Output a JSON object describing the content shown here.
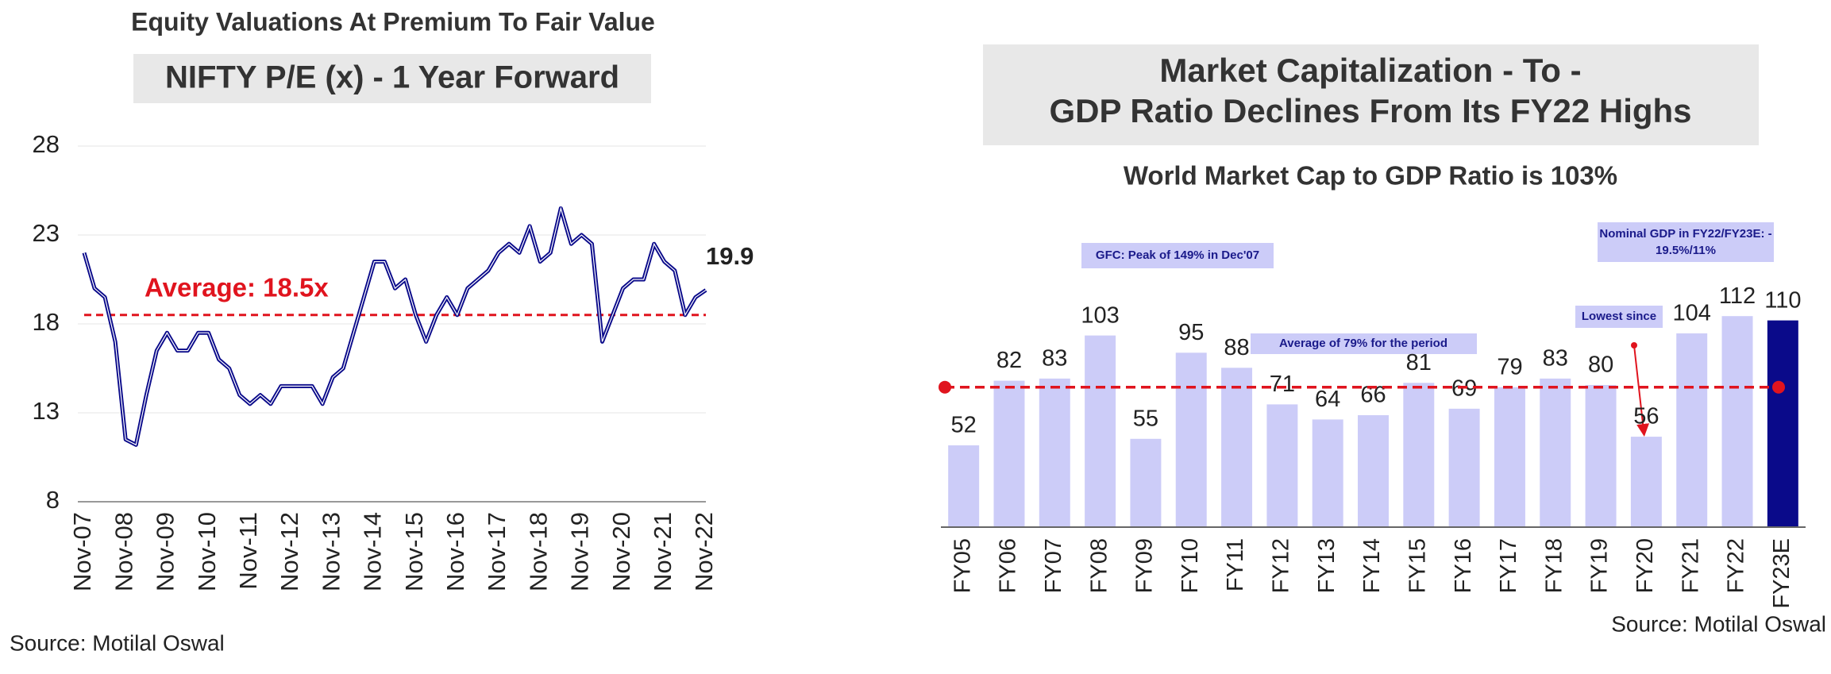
{
  "chart_data": [
    {
      "type": "line",
      "title": "Equity Valuations At Premium To Fair Value",
      "subtitle": "NIFTY P/E (x) - 1 Year Forward",
      "x": [
        "Nov-07",
        "Feb-08",
        "May-08",
        "Aug-08",
        "Nov-08",
        "Feb-09",
        "May-09",
        "Aug-09",
        "Nov-09",
        "Feb-10",
        "May-10",
        "Aug-10",
        "Nov-10",
        "Feb-11",
        "May-11",
        "Aug-11",
        "Nov-11",
        "Feb-12",
        "May-12",
        "Aug-12",
        "Nov-12",
        "Feb-13",
        "May-13",
        "Aug-13",
        "Nov-13",
        "Feb-14",
        "May-14",
        "Aug-14",
        "Nov-14",
        "Feb-15",
        "May-15",
        "Aug-15",
        "Nov-15",
        "Feb-16",
        "May-16",
        "Aug-16",
        "Nov-16",
        "Feb-17",
        "May-17",
        "Aug-17",
        "Nov-17",
        "Feb-18",
        "May-18",
        "Aug-18",
        "Nov-18",
        "Feb-19",
        "May-19",
        "Aug-19",
        "Nov-19",
        "Feb-20",
        "May-20",
        "Aug-20",
        "Nov-20",
        "Feb-21",
        "May-21",
        "Aug-21",
        "Nov-21",
        "Feb-22",
        "May-22",
        "Aug-22",
        "Nov-22"
      ],
      "values": [
        22,
        20,
        19.5,
        17,
        11.5,
        11.2,
        14,
        16.5,
        17.5,
        16.5,
        16.5,
        17.5,
        17.5,
        16,
        15.5,
        14,
        13.5,
        14,
        13.5,
        14.5,
        14.5,
        14.5,
        14.5,
        13.5,
        15,
        15.5,
        17.5,
        19.5,
        21.5,
        21.5,
        20,
        20.5,
        18.5,
        17,
        18.5,
        19.5,
        18.5,
        20,
        20.5,
        21,
        22,
        22.5,
        22,
        23.5,
        21.5,
        22,
        24.5,
        22.5,
        23,
        22.5,
        17,
        18.5,
        20,
        20.5,
        20.5,
        22.5,
        21.5,
        21,
        18.5,
        19.5,
        19.9
      ],
      "color": "#0a0a8a",
      "xticks": [
        "Nov-07",
        "Nov-08",
        "Nov-09",
        "Nov-10",
        "Nov-11",
        "Nov-12",
        "Nov-13",
        "Nov-14",
        "Nov-15",
        "Nov-16",
        "Nov-17",
        "Nov-18",
        "Nov-19",
        "Nov-20",
        "Nov-21",
        "Nov-22"
      ],
      "ylim": [
        8,
        28
      ],
      "yticks": [
        8,
        13,
        18,
        23,
        28
      ],
      "grid": true,
      "average": 18.5,
      "average_label": "Average: 18.5x",
      "average_color": "#e0141e",
      "source": "Source: Motilal Oswal"
    },
    {
      "type": "bar",
      "title": [
        "Market Capitalization - To -",
        "GDP Ratio Declines From Its FY22 Highs"
      ],
      "subtitle": "World Market Cap to GDP Ratio is 103%",
      "categories": [
        "FY05",
        "FY06",
        "FY07",
        "FY08",
        "FY09",
        "FY10",
        "FY11",
        "FY12",
        "FY13",
        "FY14",
        "FY15",
        "FY16",
        "FY17",
        "FY18",
        "FY19",
        "FY20",
        "FY21",
        "FY22",
        "FY23E"
      ],
      "values": [
        52,
        82,
        83,
        103,
        55,
        95,
        88,
        71,
        64,
        66,
        81,
        69,
        79,
        83,
        80,
        56,
        104,
        112,
        110
      ],
      "colors": [
        "#ccccf8",
        "#ccccf8",
        "#ccccf8",
        "#ccccf8",
        "#ccccf8",
        "#ccccf8",
        "#ccccf8",
        "#ccccf8",
        "#ccccf8",
        "#ccccf8",
        "#ccccf8",
        "#ccccf8",
        "#ccccf8",
        "#ccccf8",
        "#ccccf8",
        "#ccccf8",
        "#ccccf8",
        "#ccccf8",
        "#0a0a8a"
      ],
      "ylim": [
        14,
        160
      ],
      "average": 79,
      "average_color": "#e0141e",
      "annotations": [
        "GFC: Peak of 149% in Dec'07",
        "Average of 79% for the period",
        "Lowest since",
        [
          "Nominal GDP in FY22/FY23E: -",
          "19.5%/11%"
        ]
      ],
      "source": "Source: Motilal Oswal"
    }
  ]
}
